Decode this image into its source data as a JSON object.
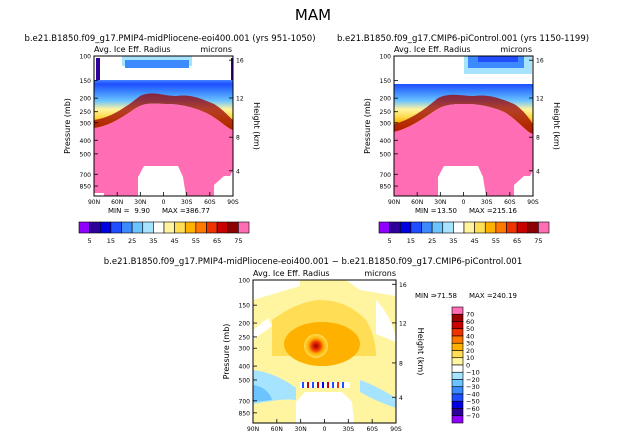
{
  "figure": {
    "title": "MAM"
  },
  "labels": {
    "pressure": "Pressure (mb)",
    "height": "Height (km)"
  },
  "ticks": {
    "pressure": [
      "100",
      "150",
      "200",
      "250",
      "300",
      "400",
      "500",
      "700",
      "850"
    ],
    "height": [
      "16",
      "12",
      "8",
      "4"
    ],
    "lat": [
      "90N",
      "60N",
      "30N",
      "0",
      "30S",
      "60S",
      "90S"
    ],
    "lat_diff": [
      "90N",
      "60N",
      "30N",
      "0",
      "30S",
      "60S",
      "90S"
    ]
  },
  "colorbars": {
    "abs": [
      "5",
      "15",
      "25",
      "35",
      "45",
      "55",
      "65",
      "75"
    ],
    "abs_colors": [
      "#8f00ff",
      "#2c0099",
      "#0000e0",
      "#1f4dff",
      "#3d8aff",
      "#6bc3ff",
      "#a6e3ff",
      "#ffffff",
      "#fff5a0",
      "#ffdd55",
      "#ffb100",
      "#ff7800",
      "#ee3300",
      "#c80000",
      "#8c0000",
      "#ff6eb4"
    ],
    "diff": [
      "70",
      "60",
      "50",
      "40",
      "30",
      "20",
      "10",
      "0",
      "−10",
      "−20",
      "−30",
      "−40",
      "−50",
      "−60",
      "−70"
    ],
    "diff_colors": [
      "#ff6eb4",
      "#9b0000",
      "#c80000",
      "#ee3300",
      "#ff7800",
      "#ffb100",
      "#ffdd55",
      "#fff5a0",
      "#ffffff",
      "#a6e3ff",
      "#6bc3ff",
      "#3d8aff",
      "#1f4dff",
      "#0000e0",
      "#2c0099",
      "#8f00ff"
    ]
  },
  "chart_data": [
    {
      "type": "heatmap",
      "title": "b.e21.B1850.f09_g17.PMIP4-midPliocene-eoi400.001 (yrs 951-1050)",
      "subtitle": "Avg. Ice Eff. Radius",
      "units": "microns",
      "xlabel": "",
      "ylabel": "Pressure (mb)",
      "y2label": "Height (km)",
      "xlim": [
        "90N",
        "90S"
      ],
      "ylim": [
        1000,
        100
      ],
      "stats": {
        "min_label": "MIN =",
        "min": "9.90",
        "max_label": "MAX =",
        "max": "386.77"
      },
      "levels": [
        5,
        15,
        25,
        35,
        45,
        55,
        65,
        75
      ]
    },
    {
      "type": "heatmap",
      "title": "b.e21.B1850.f09_g17.CMIP6-piControl.001 (yrs 1150-1199)",
      "subtitle": "Avg. Ice Eff. Radius",
      "units": "microns",
      "xlabel": "",
      "ylabel": "Pressure (mb)",
      "y2label": "Height (km)",
      "xlim": [
        "90N",
        "90S"
      ],
      "ylim": [
        1000,
        100
      ],
      "stats": {
        "min_label": "MIN =",
        "min": "13.50",
        "max_label": "MAX =",
        "max": "215.16"
      },
      "levels": [
        5,
        15,
        25,
        35,
        45,
        55,
        65,
        75
      ]
    },
    {
      "type": "heatmap",
      "title": "b.e21.B1850.f09_g17.PMIP4-midPliocene-eoi400.001 − b.e21.B1850.f09_g17.CMIP6-piControl.001",
      "subtitle": "Avg. Ice Eff. Radius",
      "units": "microns",
      "xlabel": "",
      "ylabel": "Pressure (mb)",
      "y2label": "Height (km)",
      "xlim": [
        "90N",
        "90S"
      ],
      "ylim": [
        1000,
        100
      ],
      "stats": {
        "min_label": "MIN =",
        "min": "-71.58",
        "max_label": "MAX =",
        "max": "240.19"
      },
      "levels": [
        -70,
        -60,
        -50,
        -40,
        -30,
        -20,
        -10,
        0,
        10,
        20,
        30,
        40,
        50,
        60,
        70
      ]
    }
  ]
}
